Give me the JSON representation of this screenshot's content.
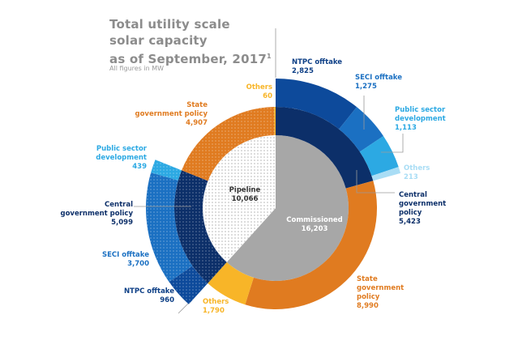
{
  "title": "Total utility scale solar capacity as of September, 2017",
  "title_lines": [
    "Total utility scale",
    "solar capacity",
    "as of September, 2017"
  ],
  "title_footnote": "1",
  "subtitle": "All figures in MW",
  "chart_data": {
    "type": "pie",
    "subtype": "multi-level sunburst",
    "unit": "MW",
    "inner": [
      {
        "name": "Commissioned",
        "value": 16203,
        "value_label": "16,203",
        "color": "#a7a7a7"
      },
      {
        "name": "Pipeline",
        "value": 10066,
        "value_label": "10,066",
        "color": "#ffffff"
      }
    ],
    "middle": [
      {
        "parent": "Commissioned",
        "name": "Central government policy",
        "value": 5423,
        "value_label": "5,423",
        "color": "#0c2f69"
      },
      {
        "parent": "Commissioned",
        "name": "State government policy",
        "value": 8990,
        "value_label": "8,990",
        "color": "#e07b20"
      },
      {
        "parent": "Commissioned",
        "name": "Others",
        "value": 1790,
        "value_label": "1,790",
        "color": "#f8b528"
      },
      {
        "parent": "Pipeline",
        "name": "Central government policy",
        "value": 5099,
        "value_label": "5,099",
        "color": "#0c2f69"
      },
      {
        "parent": "Pipeline",
        "name": "State government policy",
        "value": 4907,
        "value_label": "4,907",
        "color": "#e07b20"
      },
      {
        "parent": "Pipeline",
        "name": "Others",
        "value": 60,
        "value_label": "60",
        "color": "#f8b528"
      }
    ],
    "outer": [
      {
        "parent": "Commissioned / Central government policy",
        "name": "NTPC offtake",
        "value": 2825,
        "value_label": "2,825",
        "color": "#0d4a9b"
      },
      {
        "parent": "Commissioned / Central government policy",
        "name": "SECI offtake",
        "value": 1275,
        "value_label": "1,275",
        "color": "#1b70c2"
      },
      {
        "parent": "Commissioned / Central government policy",
        "name": "Public sector development",
        "value": 1113,
        "value_label": "1,113",
        "color": "#2ca9e3"
      },
      {
        "parent": "Commissioned / Central government policy",
        "name": "Others",
        "value": 213,
        "value_label": "213",
        "color": "#a9ddf5"
      },
      {
        "parent": "Pipeline / Central government policy",
        "name": "NTPC offtake",
        "value": 960,
        "value_label": "960",
        "color": "#0d4a9b"
      },
      {
        "parent": "Pipeline / Central government policy",
        "name": "SECI offtake",
        "value": 3700,
        "value_label": "3,700",
        "color": "#1b70c2"
      },
      {
        "parent": "Pipeline / Central government policy",
        "name": "Public sector development",
        "value": 439,
        "value_label": "439",
        "color": "#2ca9e3"
      }
    ],
    "pipeline_pattern": "dotted"
  }
}
